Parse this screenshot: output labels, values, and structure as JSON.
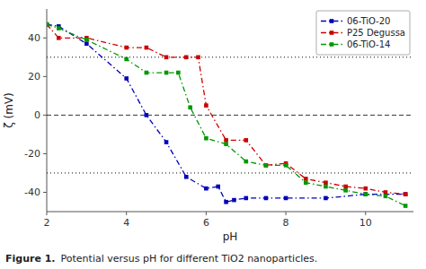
{
  "chart_data": {
    "type": "line",
    "xlabel": "pH",
    "ylabel": "ζ (mV)",
    "annotations": [
      "Figure 1.",
      "Potential versus pH for different TiO2 nanoparticles."
    ],
    "series": [
      {
        "name": "06-TiO-20",
        "color": "#0000bb",
        "marker": "square",
        "line_style": "dashdot",
        "x": [
          2.0,
          2.3,
          3.0,
          4.0,
          4.5,
          5.0,
          5.5,
          6.0,
          6.3,
          6.5,
          6.7,
          7.0,
          7.5,
          8.0,
          9.0,
          10.0,
          11.0
        ],
        "values": [
          47,
          46,
          37,
          19,
          0,
          -14,
          -32,
          -38,
          -37,
          -45,
          -44,
          -43,
          -43,
          -43,
          -43,
          -41,
          -41
        ]
      },
      {
        "name": "P25 Degussa",
        "color": "#cc0000",
        "marker": "square",
        "line_style": "dashdot",
        "x": [
          2.0,
          2.3,
          3.0,
          4.0,
          4.5,
          5.0,
          5.5,
          5.8,
          6.0,
          6.5,
          7.0,
          7.5,
          8.0,
          8.5,
          9.0,
          9.5,
          10.0,
          10.5,
          11.0
        ],
        "values": [
          47,
          40,
          40,
          35,
          35,
          30,
          30,
          30,
          5,
          -13,
          -13,
          -26,
          -25,
          -33,
          -35,
          -37,
          -38,
          -40,
          -41
        ]
      },
      {
        "name": "06-TiO-14",
        "color": "#009900",
        "marker": "square",
        "line_style": "dashdot",
        "x": [
          2.0,
          2.3,
          3.0,
          4.0,
          4.5,
          5.0,
          5.3,
          5.6,
          6.0,
          6.5,
          7.0,
          7.5,
          8.0,
          8.5,
          9.0,
          9.5,
          10.0,
          10.5,
          11.0
        ],
        "values": [
          47,
          45,
          39,
          29,
          22,
          22,
          22,
          4,
          -12,
          -15,
          -24,
          -26,
          -26,
          -35,
          -37,
          -39,
          -41,
          -42,
          -47
        ]
      }
    ],
    "xlim": [
      2,
      11.2
    ],
    "ylim": [
      -50,
      55
    ],
    "xticks": [
      2,
      4,
      6,
      8,
      10
    ],
    "yticks": [
      -40,
      -20,
      0,
      20,
      40
    ],
    "reference_lines": [
      {
        "value": 30,
        "line_style": "dotted"
      },
      {
        "value": 0,
        "line_style": "dashed"
      },
      {
        "value": -30,
        "line_style": "dotted"
      }
    ],
    "grid": false,
    "legend": "upper right"
  }
}
